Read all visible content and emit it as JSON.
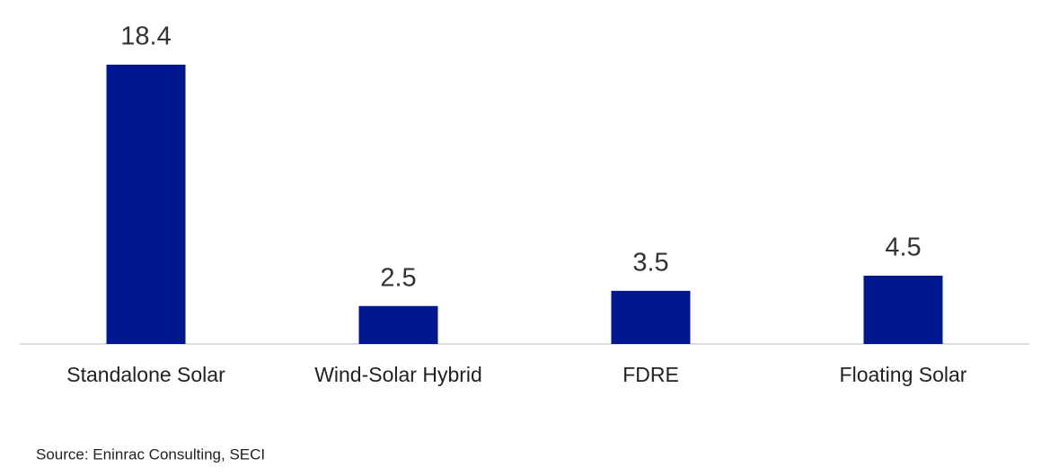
{
  "chart_data": {
    "type": "bar",
    "categories": [
      "Standalone Solar",
      "Wind-Solar Hybrid",
      "FDRE",
      "Floating Solar"
    ],
    "values": [
      18.4,
      2.5,
      3.5,
      4.5
    ],
    "color": "#00188f",
    "source": "Source: Eninrac Consulting, SECI"
  }
}
